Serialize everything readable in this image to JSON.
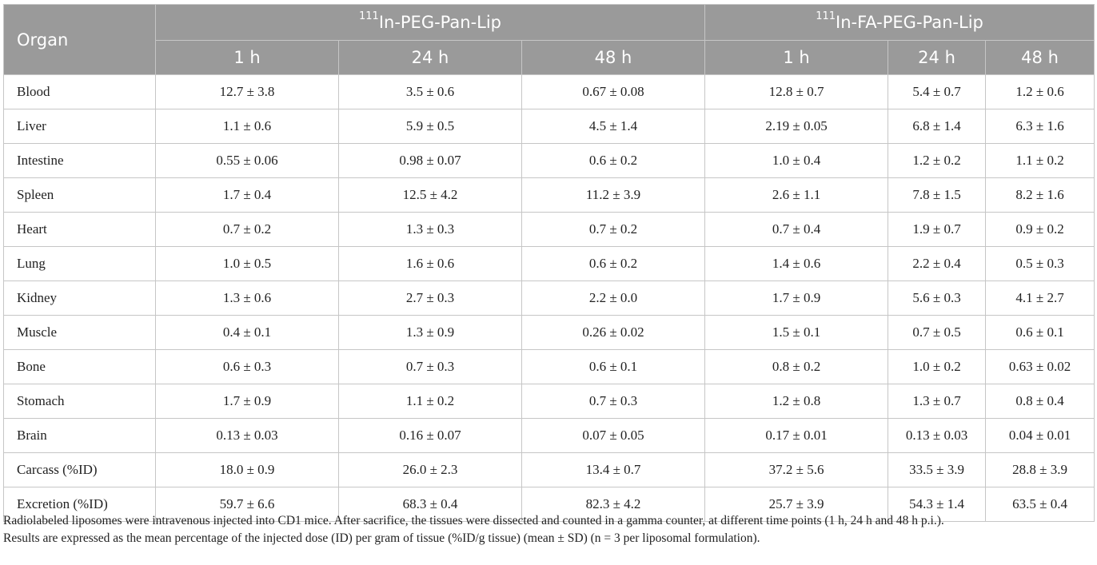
{
  "header": {
    "organ_label": "Organ",
    "group1": {
      "sup": "111",
      "name": "In-PEG-Pan-Lip"
    },
    "group2": {
      "sup": "111",
      "name": "In-FA-PEG-Pan-Lip"
    },
    "times": [
      "1 h",
      "24 h",
      "48 h",
      "1 h",
      "24 h",
      "48 h"
    ]
  },
  "rows": [
    {
      "organ": "Blood",
      "values": [
        "12.7 ± 3.8",
        "3.5 ± 0.6",
        "0.67 ± 0.08",
        "12.8 ± 0.7",
        "5.4 ± 0.7",
        "1.2 ± 0.6"
      ]
    },
    {
      "organ": "Liver",
      "values": [
        "1.1 ± 0.6",
        "5.9 ± 0.5",
        "4.5 ± 1.4",
        "2.19 ± 0.05",
        "6.8 ± 1.4",
        "6.3 ± 1.6"
      ]
    },
    {
      "organ": "Intestine",
      "values": [
        "0.55 ± 0.06",
        "0.98 ± 0.07",
        "0.6 ± 0.2",
        "1.0 ± 0.4",
        "1.2 ± 0.2",
        "1.1 ± 0.2"
      ]
    },
    {
      "organ": "Spleen",
      "values": [
        "1.7 ± 0.4",
        "12.5 ± 4.2",
        "11.2 ± 3.9",
        "2.6 ± 1.1",
        "7.8 ± 1.5",
        "8.2 ± 1.6"
      ]
    },
    {
      "organ": "Heart",
      "values": [
        "0.7 ± 0.2",
        "1.3 ± 0.3",
        "0.7 ± 0.2",
        "0.7 ± 0.4",
        "1.9 ± 0.7",
        "0.9 ± 0.2"
      ]
    },
    {
      "organ": "Lung",
      "values": [
        "1.0 ± 0.5",
        "1.6 ± 0.6",
        "0.6 ± 0.2",
        "1.4 ± 0.6",
        "2.2 ± 0.4",
        "0.5 ± 0.3"
      ]
    },
    {
      "organ": "Kidney",
      "values": [
        "1.3 ± 0.6",
        "2.7 ± 0.3",
        "2.2 ± 0.0",
        "1.7 ± 0.9",
        "5.6 ± 0.3",
        "4.1 ± 2.7"
      ]
    },
    {
      "organ": "Muscle",
      "values": [
        "0.4 ± 0.1",
        "1.3 ± 0.9",
        "0.26 ± 0.02",
        "1.5 ± 0.1",
        "0.7 ± 0.5",
        "0.6 ± 0.1"
      ]
    },
    {
      "organ": "Bone",
      "values": [
        "0.6 ± 0.3",
        "0.7 ± 0.3",
        "0.6 ± 0.1",
        "0.8 ± 0.2",
        "1.0 ± 0.2",
        "0.63 ± 0.02"
      ]
    },
    {
      "organ": "Stomach",
      "values": [
        "1.7 ± 0.9",
        "1.1 ± 0.2",
        "0.7 ± 0.3",
        "1.2 ± 0.8",
        "1.3 ± 0.7",
        "0.8 ± 0.4"
      ]
    },
    {
      "organ": "Brain",
      "values": [
        "0.13 ± 0.03",
        "0.16 ± 0.07",
        "0.07 ± 0.05",
        "0.17 ± 0.01",
        "0.13 ± 0.03",
        "0.04 ± 0.01"
      ]
    },
    {
      "organ": "Carcass (%ID)",
      "values": [
        "18.0 ± 0.9",
        "26.0 ± 2.3",
        "13.4 ± 0.7",
        "37.2 ± 5.6",
        "33.5 ± 3.9",
        "28.8 ± 3.9"
      ]
    },
    {
      "organ": "Excretion (%ID)",
      "values": [
        "59.7 ± 6.6",
        "68.3 ± 0.4",
        "82.3 ± 4.2",
        "25.7 ± 3.9",
        "54.3 ± 1.4",
        "63.5 ± 0.4"
      ]
    }
  ],
  "footnote": {
    "line1": "Radiolabeled liposomes were intravenous injected into CD1 mice. After sacrifice, the tissues were dissected and counted in a gamma counter, at different time points (1 h, 24 h and 48 h p.i.).",
    "line2": "Results are expressed as the mean percentage of the injected dose (ID) per gram of tissue (%ID/g tissue) (mean ± SD) (n = 3 per liposomal formulation)."
  },
  "colors": {
    "header_bg": "#9a9a9a",
    "header_text": "#ffffff",
    "grid": "#c6c6c6"
  }
}
